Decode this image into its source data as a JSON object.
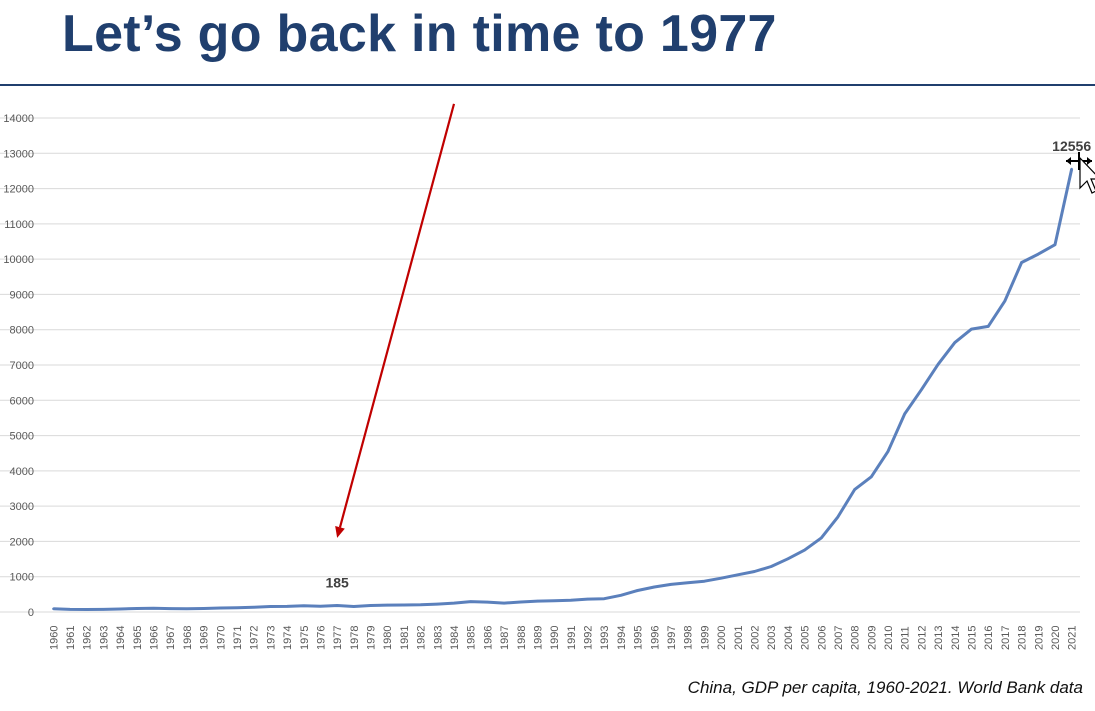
{
  "slide": {
    "title": "Let’s go back in time to 1977",
    "caption": "China, GDP per capita, 1960-2021. World Bank data"
  },
  "colors": {
    "title": "#203f6e",
    "line": "#5b80bc",
    "arrow": "#c00000",
    "grid": "#d9d9d9"
  },
  "chart_data": {
    "type": "line",
    "title": "",
    "xlabel": "",
    "ylabel": "",
    "ylim": [
      0,
      14000
    ],
    "yticks": [
      0,
      1000,
      2000,
      3000,
      4000,
      5000,
      6000,
      7000,
      8000,
      9000,
      10000,
      11000,
      12000,
      13000,
      14000
    ],
    "grid": true,
    "legend": "none",
    "x": [
      "1960",
      "1961",
      "1962",
      "1963",
      "1964",
      "1965",
      "1966",
      "1967",
      "1968",
      "1969",
      "1970",
      "1971",
      "1972",
      "1973",
      "1974",
      "1975",
      "1976",
      "1977",
      "1978",
      "1979",
      "1980",
      "1981",
      "1982",
      "1983",
      "1984",
      "1985",
      "1986",
      "1987",
      "1988",
      "1989",
      "1990",
      "1991",
      "1992",
      "1993",
      "1994",
      "1995",
      "1996",
      "1997",
      "1998",
      "1999",
      "2000",
      "2001",
      "2002",
      "2003",
      "2004",
      "2005",
      "2006",
      "2007",
      "2008",
      "2009",
      "2010",
      "2011",
      "2012",
      "2013",
      "2014",
      "2015",
      "2016",
      "2017",
      "2018",
      "2019",
      "2020",
      "2021"
    ],
    "series": [
      {
        "name": "",
        "values": [
          90,
          75,
          70,
          74,
          85,
          98,
          104,
          97,
          91,
          100,
          113,
          118,
          132,
          157,
          160,
          178,
          165,
          185,
          156,
          184,
          195,
          197,
          203,
          225,
          251,
          294,
          281,
          252,
          284,
          310,
          318,
          333,
          366,
          377,
          473,
          609,
          709,
          781,
          828,
          873,
          959,
          1053,
          1149,
          1289,
          1509,
          1753,
          2099,
          2694,
          3468,
          3832,
          4550,
          5614,
          6301,
          7020,
          7636,
          8016,
          8094,
          8817,
          9905,
          10144,
          10409,
          12556
        ]
      }
    ],
    "annotations": [
      {
        "x": "1977",
        "y": 185,
        "label": "185"
      },
      {
        "x": "2021",
        "y": 12556,
        "label": "12556"
      }
    ],
    "arrow": {
      "from": {
        "x": "1984",
        "y": 14400
      },
      "to": {
        "x": "1977",
        "y": 2100
      }
    }
  }
}
